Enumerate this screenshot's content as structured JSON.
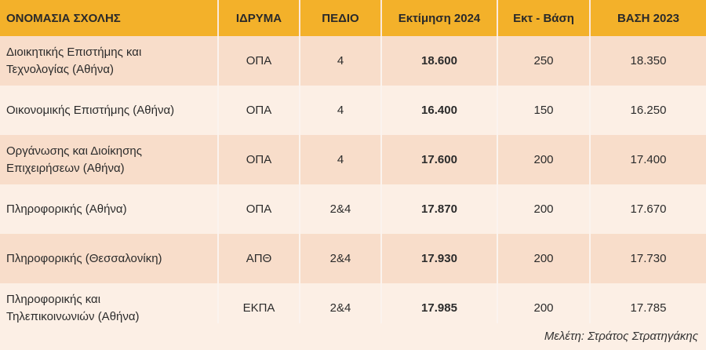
{
  "table": {
    "headers": [
      "ΟΝΟΜΑΣΙΑ ΣΧΟΛΗΣ",
      "ΙΔΡΥΜΑ",
      "ΠΕΔΙΟ",
      "Εκτίμηση  2024",
      "Εκτ - Βάση",
      "ΒΑΣΗ 2023"
    ],
    "rows": [
      {
        "name_line1": "Διοικητικής Επιστήμης και",
        "name_line2": "Τεχνολογίας (Αθήνα)",
        "institution": "ΟΠΑ",
        "field": "4",
        "estimate_2024": "18.600",
        "diff": "250",
        "base_2023": "18.350"
      },
      {
        "name_line1": "Οικονομικής Επιστήμης (Αθήνα)",
        "name_line2": "",
        "institution": "ΟΠΑ",
        "field": "4",
        "estimate_2024": "16.400",
        "diff": "150",
        "base_2023": "16.250"
      },
      {
        "name_line1": "Οργάνωσης και Διοίκησης",
        "name_line2": "Επιχειρήσεων (Αθήνα)",
        "institution": "ΟΠΑ",
        "field": "4",
        "estimate_2024": "17.600",
        "diff": "200",
        "base_2023": "17.400"
      },
      {
        "name_line1": "Πληροφορικής (Αθήνα)",
        "name_line2": "",
        "institution": "ΟΠΑ",
        "field": "2&4",
        "estimate_2024": "17.870",
        "diff": "200",
        "base_2023": "17.670"
      },
      {
        "name_line1": "Πληροφορικής (Θεσσαλονίκη)",
        "name_line2": "",
        "institution": "ΑΠΘ",
        "field": "2&4",
        "estimate_2024": "17.930",
        "diff": "200",
        "base_2023": "17.730"
      },
      {
        "name_line1": "Πληροφορικής και",
        "name_line2": "Τηλεπικοινωνιών (Αθήνα)",
        "institution": "ΕΚΠΑ",
        "field": "2&4",
        "estimate_2024": "17.985",
        "diff": "200",
        "base_2023": "17.785"
      }
    ]
  },
  "footer": {
    "credit": "Μελέτη: Στράτος Στρατηγάκης"
  }
}
